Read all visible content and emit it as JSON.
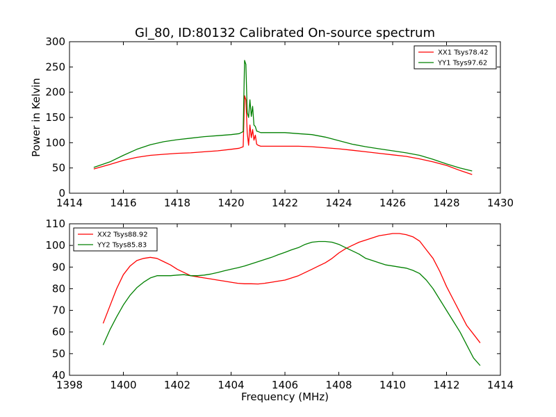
{
  "chart_data": {
    "title": "Gl_80, ID:80132 Calibrated On-source spectrum",
    "panels": [
      {
        "type": "line",
        "xlabel": "",
        "ylabel": "Power in Kelvin",
        "xlim": [
          1414,
          1430
        ],
        "ylim": [
          0,
          300
        ],
        "xticks": [
          1414,
          1416,
          1418,
          1420,
          1422,
          1424,
          1426,
          1428,
          1430
        ],
        "yticks": [
          0,
          50,
          100,
          150,
          200,
          250,
          300
        ],
        "grid": false,
        "legend_position": "top-right",
        "series": [
          {
            "name": "XX1 Tsys78.42",
            "color": "#ff0000",
            "x": [
              1414.9,
              1415.5,
              1416.0,
              1416.5,
              1417.0,
              1417.5,
              1418.0,
              1418.5,
              1419.0,
              1419.5,
              1420.0,
              1420.3,
              1420.45,
              1420.5,
              1420.55,
              1420.6,
              1420.65,
              1420.7,
              1420.75,
              1420.8,
              1420.85,
              1420.9,
              1420.95,
              1421.0,
              1421.1,
              1421.3,
              1421.6,
              1422.0,
              1422.5,
              1423.0,
              1423.5,
              1424.0,
              1424.5,
              1425.0,
              1425.5,
              1426.0,
              1426.5,
              1427.0,
              1427.5,
              1428.0,
              1428.5,
              1428.95
            ],
            "y": [
              48,
              57,
              65,
              71,
              75,
              77,
              79,
              80,
              82,
              84,
              87,
              89,
              92,
              193,
              185,
              120,
              95,
              135,
              110,
              126,
              105,
              115,
              97,
              95,
              93,
              93,
              93,
              93,
              93,
              92,
              90,
              88,
              85,
              82,
              79,
              76,
              73,
              68,
              62,
              55,
              45,
              37
            ]
          },
          {
            "name": "YY1 Tsys97.62",
            "color": "#008000",
            "x": [
              1414.9,
              1415.5,
              1416.0,
              1416.5,
              1417.0,
              1417.5,
              1418.0,
              1418.5,
              1419.0,
              1419.5,
              1420.0,
              1420.3,
              1420.45,
              1420.5,
              1420.55,
              1420.6,
              1420.65,
              1420.7,
              1420.75,
              1420.8,
              1420.85,
              1420.9,
              1420.95,
              1421.0,
              1421.1,
              1421.3,
              1421.6,
              1422.0,
              1422.5,
              1423.0,
              1423.5,
              1424.0,
              1424.5,
              1425.0,
              1425.5,
              1426.0,
              1426.5,
              1427.0,
              1427.5,
              1428.0,
              1428.5,
              1428.95
            ],
            "y": [
              51,
              62,
              75,
              87,
              96,
              102,
              106,
              109,
              112,
              114,
              116,
              118,
              122,
              263,
              255,
              160,
              150,
              185,
              152,
              172,
              135,
              132,
              123,
              122,
              120,
              120,
              120,
              120,
              118,
              116,
              111,
              104,
              97,
              92,
              88,
              84,
              80,
              75,
              67,
              58,
              50,
              44
            ]
          }
        ]
      },
      {
        "type": "line",
        "xlabel": "Frequency (MHz)",
        "ylabel": "",
        "xlim": [
          1398,
          1414
        ],
        "ylim": [
          40,
          110
        ],
        "xticks": [
          1398,
          1400,
          1402,
          1404,
          1406,
          1408,
          1410,
          1412,
          1414
        ],
        "yticks": [
          40,
          50,
          60,
          70,
          80,
          90,
          100,
          110
        ],
        "grid": false,
        "legend_position": "top-left",
        "series": [
          {
            "name": "XX2 Tsys88.92",
            "color": "#ff0000",
            "x": [
              1399.25,
              1399.5,
              1399.75,
              1400.0,
              1400.25,
              1400.5,
              1400.75,
              1401.0,
              1401.25,
              1401.5,
              1401.75,
              1402.0,
              1402.25,
              1402.5,
              1402.75,
              1403.0,
              1403.25,
              1403.5,
              1403.75,
              1404.0,
              1404.25,
              1404.5,
              1404.75,
              1405.0,
              1405.25,
              1405.5,
              1405.75,
              1406.0,
              1406.25,
              1406.5,
              1406.75,
              1407.0,
              1407.25,
              1407.5,
              1407.75,
              1408.0,
              1408.25,
              1408.5,
              1408.75,
              1409.0,
              1409.25,
              1409.5,
              1409.75,
              1410.0,
              1410.25,
              1410.5,
              1410.75,
              1411.0,
              1411.25,
              1411.5,
              1411.75,
              1412.0,
              1412.25,
              1412.5,
              1412.75,
              1413.0,
              1413.25
            ],
            "y": [
              64,
              72,
              80,
              86.5,
              90.5,
              93,
              94,
              94.5,
              94,
              92.5,
              91,
              89,
              87.5,
              86,
              85.5,
              85,
              84.5,
              84,
              83.5,
              83,
              82.5,
              82.3,
              82.3,
              82.2,
              82.5,
              83,
              83.5,
              84,
              85,
              86,
              87.5,
              89,
              90.5,
              92,
              94,
              96.5,
              98.5,
              100,
              101.5,
              102.5,
              103.5,
              104.5,
              105,
              105.5,
              105.5,
              105,
              104,
              102,
              98,
              94,
              88,
              81,
              75,
              69,
              63,
              59,
              55
            ]
          },
          {
            "name": "YY2 Tsys85.83",
            "color": "#008000",
            "x": [
              1399.25,
              1399.5,
              1399.75,
              1400.0,
              1400.25,
              1400.5,
              1400.75,
              1401.0,
              1401.25,
              1401.5,
              1401.75,
              1402.0,
              1402.25,
              1402.5,
              1402.75,
              1403.0,
              1403.25,
              1403.5,
              1403.75,
              1404.0,
              1404.25,
              1404.5,
              1404.75,
              1405.0,
              1405.25,
              1405.5,
              1405.75,
              1406.0,
              1406.25,
              1406.5,
              1406.75,
              1407.0,
              1407.25,
              1407.5,
              1407.75,
              1408.0,
              1408.25,
              1408.5,
              1408.75,
              1409.0,
              1409.25,
              1409.5,
              1409.75,
              1410.0,
              1410.25,
              1410.5,
              1410.75,
              1411.0,
              1411.25,
              1411.5,
              1411.75,
              1412.0,
              1412.25,
              1412.5,
              1412.75,
              1413.0,
              1413.25
            ],
            "y": [
              54,
              61,
              67,
              72.5,
              77,
              80.5,
              83,
              85,
              86,
              86,
              86,
              86.3,
              86.5,
              86,
              86,
              86.3,
              86.8,
              87.5,
              88.3,
              89,
              89.7,
              90.5,
              91.5,
              92.5,
              93.5,
              94.5,
              95.7,
              96.8,
              98,
              99,
              100.5,
              101.5,
              101.8,
              101.8,
              101.5,
              100.5,
              99,
              97.5,
              96,
              94,
              93,
              92,
              91,
              90.5,
              90,
              89.5,
              88.5,
              87,
              84,
              80,
              75,
              70,
              65,
              60,
              54,
              48,
              44.5
            ]
          }
        ]
      }
    ]
  }
}
